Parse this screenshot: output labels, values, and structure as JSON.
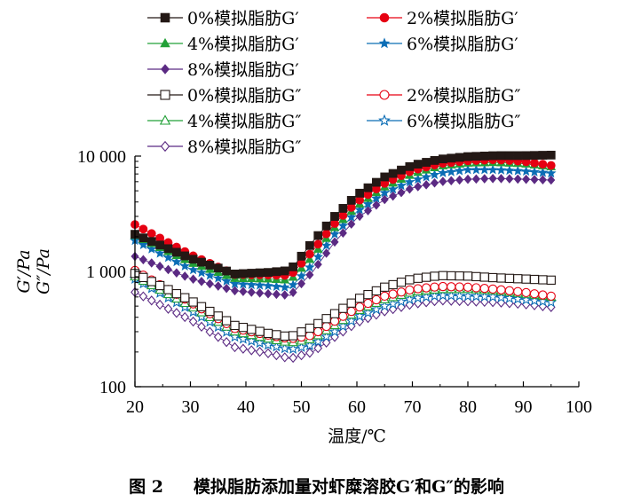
{
  "chart_data": {
    "type": "scatter",
    "title": "",
    "xlabel": "温度/℃",
    "ylabel_lines": [
      "G′/Pa",
      "G″/Pa"
    ],
    "y_scale": "log",
    "xlim": [
      20,
      100
    ],
    "ylim": [
      100,
      10000
    ],
    "x_ticks": [
      20,
      30,
      40,
      50,
      60,
      70,
      80,
      90,
      100
    ],
    "y_ticks": [
      100,
      1000,
      10000
    ],
    "y_tick_labels": [
      "100",
      "1 000",
      "10 000"
    ],
    "x_tick_labels": [
      "20",
      "30",
      "40",
      "50",
      "60",
      "70",
      "80",
      "90",
      "100"
    ],
    "grid": false,
    "legend_position": "top",
    "curve_nodes_x": [
      20,
      30,
      38,
      44,
      48,
      52,
      56,
      60,
      65,
      70,
      75,
      80,
      85,
      90,
      95
    ],
    "series": [
      {
        "name": "0%模拟脂肪G′",
        "color": "#231815",
        "marker": "square-filled",
        "x": [
          20,
          30,
          38,
          44,
          48,
          52,
          56,
          60,
          65,
          70,
          75,
          80,
          85,
          90,
          95
        ],
        "y": [
          2100,
          1300,
          950,
          980,
          1020,
          1800,
          3000,
          4600,
          6600,
          8300,
          9400,
          9900,
          10100,
          10100,
          10200
        ]
      },
      {
        "name": "2%模拟脂肪G′",
        "color": "#e60012",
        "marker": "circle-filled",
        "x": [
          20,
          30,
          38,
          44,
          48,
          52,
          56,
          60,
          65,
          70,
          75,
          80,
          85,
          90,
          95
        ],
        "y": [
          2550,
          1400,
          940,
          930,
          920,
          1500,
          2600,
          4000,
          5800,
          7500,
          8600,
          9100,
          9300,
          9000,
          8300
        ]
      },
      {
        "name": "4%模拟脂肪G′",
        "color": "#22a037",
        "marker": "triangle-filled",
        "x": [
          20,
          30,
          38,
          44,
          48,
          52,
          56,
          60,
          65,
          70,
          75,
          80,
          85,
          90,
          95
        ],
        "y": [
          2050,
          1200,
          870,
          860,
          840,
          1350,
          2400,
          3700,
          5400,
          7000,
          8200,
          8700,
          8800,
          8600,
          8100
        ]
      },
      {
        "name": "6%模拟脂肪G′",
        "color": "#0b6db5",
        "marker": "star-filled",
        "x": [
          20,
          30,
          38,
          44,
          48,
          52,
          56,
          60,
          65,
          70,
          75,
          80,
          85,
          90,
          95
        ],
        "y": [
          1850,
          1050,
          780,
          750,
          720,
          1150,
          2100,
          3300,
          4800,
          6100,
          7100,
          7600,
          7600,
          7400,
          7100
        ]
      },
      {
        "name": "8%模拟脂肪G′",
        "color": "#5b2a83",
        "marker": "diamond-filled",
        "x": [
          20,
          30,
          38,
          44,
          48,
          52,
          56,
          60,
          65,
          70,
          75,
          80,
          85,
          90,
          95
        ],
        "y": [
          1350,
          870,
          680,
          640,
          620,
          990,
          1800,
          2900,
          4200,
          5300,
          6000,
          6300,
          6400,
          6300,
          6200
        ]
      },
      {
        "name": "0%模拟脂肪G″",
        "color": "#231815",
        "marker": "square-open",
        "x": [
          20,
          30,
          38,
          44,
          48,
          52,
          56,
          60,
          65,
          70,
          75,
          80,
          85,
          90,
          95
        ],
        "y": [
          960,
          560,
          340,
          290,
          270,
          330,
          430,
          570,
          730,
          860,
          920,
          910,
          880,
          860,
          840
        ]
      },
      {
        "name": "2%模拟脂肪G″",
        "color": "#e60012",
        "marker": "circle-open",
        "x": [
          20,
          30,
          38,
          44,
          48,
          52,
          56,
          60,
          65,
          70,
          75,
          80,
          85,
          90,
          95
        ],
        "y": [
          1020,
          540,
          320,
          280,
          260,
          280,
          370,
          480,
          610,
          700,
          740,
          730,
          700,
          660,
          610
        ]
      },
      {
        "name": "4%模拟脂肪G″",
        "color": "#22a037",
        "marker": "triangle-open",
        "x": [
          20,
          30,
          38,
          44,
          48,
          52,
          56,
          60,
          65,
          70,
          75,
          80,
          85,
          90,
          95
        ],
        "y": [
          900,
          500,
          300,
          260,
          240,
          260,
          340,
          450,
          570,
          660,
          700,
          700,
          680,
          640,
          600
        ]
      },
      {
        "name": "6%模拟脂肪G″",
        "color": "#0b6db5",
        "marker": "star-open",
        "x": [
          20,
          30,
          38,
          44,
          48,
          52,
          56,
          60,
          65,
          70,
          75,
          80,
          85,
          90,
          95
        ],
        "y": [
          860,
          460,
          270,
          230,
          210,
          230,
          300,
          400,
          500,
          580,
          620,
          610,
          600,
          570,
          540
        ]
      },
      {
        "name": "8%模拟脂肪G″",
        "color": "#5b2a83",
        "marker": "diamond-open",
        "x": [
          20,
          30,
          38,
          44,
          48,
          52,
          56,
          60,
          65,
          70,
          75,
          80,
          85,
          90,
          95
        ],
        "y": [
          660,
          380,
          220,
          195,
          175,
          200,
          270,
          360,
          450,
          520,
          560,
          550,
          540,
          520,
          490
        ]
      }
    ]
  },
  "caption": {
    "figure_number": "图 2",
    "text": "模拟脂肪添加量对虾糜溶胶G′和G″的影响"
  }
}
